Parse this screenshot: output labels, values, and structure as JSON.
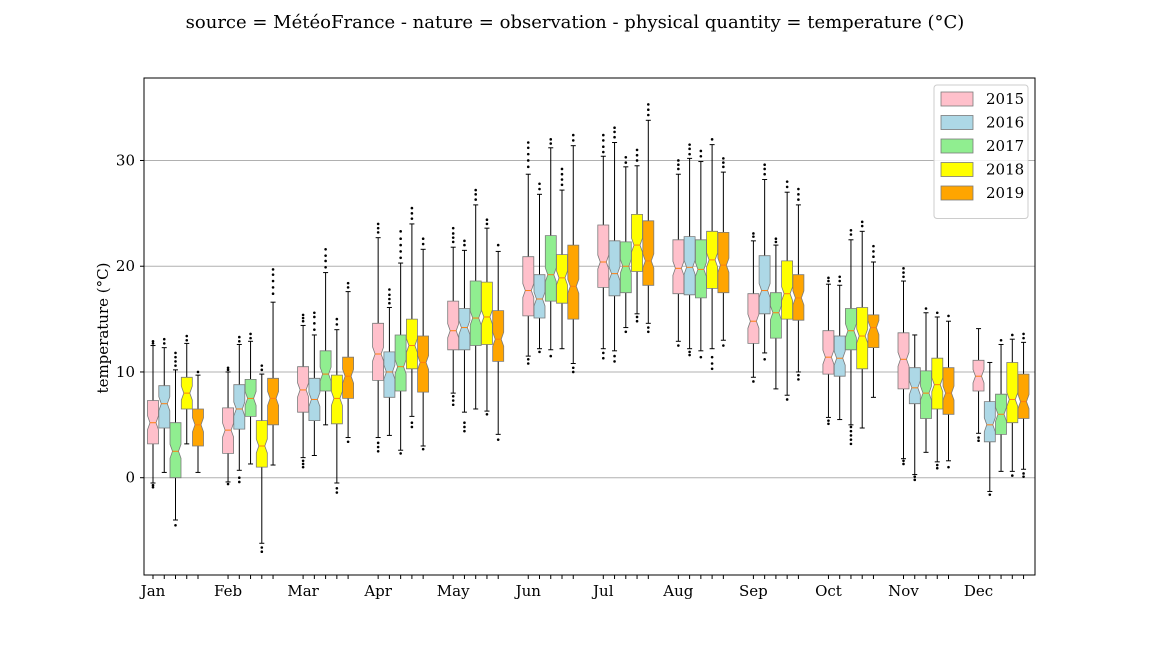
{
  "title": "source = MétéoFrance - nature = observation - physical quantity = temperature (°C)",
  "chart_data": {
    "type": "box",
    "title": "source = MétéoFrance - nature = observation - physical quantity = temperature (°C)",
    "xlabel": "",
    "ylabel": "temperature (°C)",
    "ylim": [
      -9.2,
      37.8
    ],
    "yticks": [
      0,
      10,
      20,
      30
    ],
    "grid": "y",
    "legend_position": "top-right",
    "categories": [
      "Jan",
      "Feb",
      "Mar",
      "Apr",
      "May",
      "Jun",
      "Jul",
      "Aug",
      "Sep",
      "Oct",
      "Nov",
      "Dec"
    ],
    "series": [
      {
        "name": "2015",
        "color": "#ffc0cb",
        "boxes": [
          {
            "whisker_low": -0.5,
            "q1": 3.2,
            "median": 5.2,
            "q3": 7.3,
            "whisker_high": 12.5,
            "outliers": [
              -0.9,
              -0.7,
              12.7,
              12.9
            ]
          },
          {
            "whisker_low": -0.4,
            "q1": 2.3,
            "median": 4.5,
            "q3": 6.6,
            "whisker_high": 10.0,
            "outliers": [
              -0.6,
              10.2,
              10.4
            ]
          },
          {
            "whisker_low": 1.9,
            "q1": 6.2,
            "median": 8.3,
            "q3": 10.5,
            "whisker_high": 14.4,
            "outliers": [
              1.0,
              1.3,
              1.6,
              14.8,
              15.1,
              15.4
            ]
          },
          {
            "whisker_low": 3.8,
            "q1": 9.2,
            "median": 11.7,
            "q3": 14.6,
            "whisker_high": 22.7,
            "outliers": [
              2.5,
              2.9,
              3.3,
              23.2,
              23.6,
              24.0
            ]
          },
          {
            "whisker_low": 8.0,
            "q1": 12.1,
            "median": 13.9,
            "q3": 16.7,
            "whisker_high": 21.8,
            "outliers": [
              6.9,
              7.3,
              7.7,
              22.3,
              22.7,
              23.1,
              23.6
            ]
          },
          {
            "whisker_low": 11.5,
            "q1": 15.3,
            "median": 17.7,
            "q3": 20.9,
            "whisker_high": 28.7,
            "outliers": [
              10.8,
              11.2,
              29.4,
              30.0,
              30.6,
              31.2,
              31.7
            ]
          },
          {
            "whisker_low": 12.2,
            "q1": 18.0,
            "median": 20.4,
            "q3": 23.9,
            "whisker_high": 30.4,
            "outliers": [
              11.3,
              11.8,
              30.8,
              31.3,
              31.9,
              32.4
            ]
          },
          {
            "whisker_low": 12.9,
            "q1": 17.4,
            "median": 19.8,
            "q3": 22.5,
            "whisker_high": 28.7,
            "outliers": [
              12.5,
              29.2,
              29.6,
              30.0
            ]
          },
          {
            "whisker_low": 9.5,
            "q1": 12.7,
            "median": 14.8,
            "q3": 17.4,
            "whisker_high": 22.4,
            "outliers": [
              9.1,
              22.8,
              23.1
            ]
          },
          {
            "whisker_low": 5.7,
            "q1": 9.8,
            "median": 11.4,
            "q3": 13.9,
            "whisker_high": 18.3,
            "outliers": [
              5.1,
              5.4,
              18.6,
              18.9
            ]
          },
          {
            "whisker_low": 1.8,
            "q1": 8.4,
            "median": 11.2,
            "q3": 13.7,
            "whisker_high": 18.6,
            "outliers": [
              1.3,
              1.6,
              19.0,
              19.4,
              19.8
            ]
          },
          {
            "whisker_low": 4.2,
            "q1": 8.2,
            "median": 9.6,
            "q3": 11.1,
            "whisker_high": 14.1,
            "outliers": [
              3.5,
              3.8
            ]
          }
        ]
      },
      {
        "name": "2016",
        "color": "#add8e6",
        "boxes": [
          {
            "whisker_low": 0.5,
            "q1": 4.7,
            "median": 7.0,
            "q3": 8.7,
            "whisker_high": 12.3,
            "outliers": [
              12.7,
              13.1
            ]
          },
          {
            "whisker_low": 0.7,
            "q1": 4.6,
            "median": 6.5,
            "q3": 8.8,
            "whisker_high": 12.6,
            "outliers": [
              -0.4,
              0.0,
              12.9,
              13.3
            ]
          },
          {
            "whisker_low": 2.1,
            "q1": 5.4,
            "median": 7.4,
            "q3": 9.4,
            "whisker_high": 13.5,
            "outliers": [
              14.0,
              14.6,
              15.2,
              15.6
            ]
          },
          {
            "whisker_low": 4.0,
            "q1": 7.6,
            "median": 10.0,
            "q3": 11.9,
            "whisker_high": 16.1,
            "outliers": [
              16.5,
              16.9,
              17.3,
              17.8
            ]
          },
          {
            "whisker_low": 6.2,
            "q1": 12.1,
            "median": 14.2,
            "q3": 16.0,
            "whisker_high": 21.5,
            "outliers": [
              4.4,
              4.8,
              5.2,
              22.0,
              22.4
            ]
          },
          {
            "whisker_low": 12.2,
            "q1": 15.1,
            "median": 16.9,
            "q3": 19.2,
            "whisker_high": 26.8,
            "outliers": [
              11.9,
              27.3,
              27.8
            ]
          },
          {
            "whisker_low": 12.0,
            "q1": 17.2,
            "median": 19.3,
            "q3": 22.4,
            "whisker_high": 31.7,
            "outliers": [
              11.0,
              11.5,
              32.2,
              32.7,
              33.1
            ]
          },
          {
            "whisker_low": 12.2,
            "q1": 17.3,
            "median": 19.9,
            "q3": 22.8,
            "whisker_high": 30.2,
            "outliers": [
              11.6,
              11.9,
              30.6,
              31.1,
              31.5
            ]
          },
          {
            "whisker_low": 11.8,
            "q1": 15.5,
            "median": 17.7,
            "q3": 21.0,
            "whisker_high": 28.2,
            "outliers": [
              11.2,
              28.7,
              29.2,
              29.6
            ]
          },
          {
            "whisker_low": 5.5,
            "q1": 9.6,
            "median": 11.3,
            "q3": 13.4,
            "whisker_high": 18.2,
            "outliers": [
              18.6,
              19.0
            ]
          },
          {
            "whisker_low": 0.3,
            "q1": 7.0,
            "median": 8.5,
            "q3": 10.4,
            "whisker_high": 13.5,
            "outliers": [
              -0.2,
              0.1
            ]
          },
          {
            "whisker_low": -1.3,
            "q1": 3.4,
            "median": 5.0,
            "q3": 7.2,
            "whisker_high": 10.9,
            "outliers": [
              -1.6
            ]
          }
        ]
      },
      {
        "name": "2017",
        "color": "#90ee90",
        "boxes": [
          {
            "whisker_low": -4.0,
            "q1": 0.0,
            "median": 2.5,
            "q3": 5.2,
            "whisker_high": 10.2,
            "outliers": [
              -4.5,
              10.6,
              11.0,
              11.4,
              11.8
            ]
          },
          {
            "whisker_low": 1.3,
            "q1": 5.8,
            "median": 7.5,
            "q3": 9.3,
            "whisker_high": 12.9,
            "outliers": [
              13.2,
              13.6
            ]
          },
          {
            "whisker_low": 5.0,
            "q1": 8.2,
            "median": 9.8,
            "q3": 12.0,
            "whisker_high": 19.4,
            "outliers": [
              19.9,
              20.5,
              21.0,
              21.6
            ]
          },
          {
            "whisker_low": 2.6,
            "q1": 8.2,
            "median": 10.5,
            "q3": 13.5,
            "whisker_high": 20.3,
            "outliers": [
              2.3,
              20.8,
              21.4,
              22.0,
              22.6,
              23.3
            ]
          },
          {
            "whisker_low": 6.5,
            "q1": 12.5,
            "median": 15.1,
            "q3": 18.6,
            "whisker_high": 25.8,
            "outliers": [
              26.3,
              26.8,
              27.2
            ]
          },
          {
            "whisker_low": 12.1,
            "q1": 16.7,
            "median": 19.2,
            "q3": 22.9,
            "whisker_high": 31.2,
            "outliers": [
              11.5,
              31.6,
              32.0
            ]
          },
          {
            "whisker_low": 14.2,
            "q1": 17.5,
            "median": 20.0,
            "q3": 22.3,
            "whisker_high": 29.4,
            "outliers": [
              13.8,
              29.8,
              30.3
            ]
          },
          {
            "whisker_low": 12.0,
            "q1": 17.0,
            "median": 19.7,
            "q3": 22.5,
            "whisker_high": 29.9,
            "outliers": [
              11.4,
              30.4,
              30.9
            ]
          },
          {
            "whisker_low": 8.4,
            "q1": 13.2,
            "median": 15.6,
            "q3": 17.5,
            "whisker_high": 22.0,
            "outliers": [
              22.3,
              22.6
            ]
          },
          {
            "whisker_low": 5.0,
            "q1": 12.1,
            "median": 13.9,
            "q3": 16.0,
            "whisker_high": 22.5,
            "outliers": [
              3.2,
              3.6,
              4.0,
              4.4,
              4.8,
              23.0,
              23.4
            ]
          },
          {
            "whisker_low": 2.4,
            "q1": 5.6,
            "median": 8.0,
            "q3": 10.1,
            "whisker_high": 15.6,
            "outliers": [
              16.0
            ]
          },
          {
            "whisker_low": 0.6,
            "q1": 4.1,
            "median": 6.0,
            "q3": 7.9,
            "whisker_high": 12.6,
            "outliers": [
              13.0
            ]
          }
        ]
      },
      {
        "name": "2018",
        "color": "#ffff00",
        "boxes": [
          {
            "whisker_low": 3.2,
            "q1": 6.5,
            "median": 8.0,
            "q3": 9.5,
            "whisker_high": 12.7,
            "outliers": [
              13.0,
              13.4
            ]
          },
          {
            "whisker_low": -6.2,
            "q1": 1.0,
            "median": 3.0,
            "q3": 5.4,
            "whisker_high": 9.8,
            "outliers": [
              -6.6,
              -7.0,
              10.2,
              10.6
            ]
          },
          {
            "whisker_low": -0.5,
            "q1": 5.1,
            "median": 7.5,
            "q3": 9.7,
            "whisker_high": 14.0,
            "outliers": [
              -1.0,
              -1.4,
              14.5,
              15.0
            ]
          },
          {
            "whisker_low": 5.8,
            "q1": 10.3,
            "median": 12.5,
            "q3": 15.0,
            "whisker_high": 24.0,
            "outliers": [
              4.8,
              5.2,
              24.5,
              25.0,
              25.5
            ]
          },
          {
            "whisker_low": 6.3,
            "q1": 12.6,
            "median": 15.2,
            "q3": 18.5,
            "whisker_high": 23.6,
            "outliers": [
              6.0,
              24.0,
              24.4
            ]
          },
          {
            "whisker_low": 12.2,
            "q1": 16.5,
            "median": 18.9,
            "q3": 21.1,
            "whisker_high": 27.2,
            "outliers": [
              27.7,
              28.2,
              28.7,
              29.2
            ]
          },
          {
            "whisker_low": 15.5,
            "q1": 19.5,
            "median": 22.0,
            "q3": 24.9,
            "whisker_high": 29.5,
            "outliers": [
              14.8,
              15.2,
              30.0,
              30.5,
              31.0
            ]
          },
          {
            "whisker_low": 12.2,
            "q1": 17.9,
            "median": 20.6,
            "q3": 23.3,
            "whisker_high": 31.5,
            "outliers": [
              10.3,
              10.8,
              11.4,
              32.0
            ]
          },
          {
            "whisker_low": 7.8,
            "q1": 15.0,
            "median": 17.4,
            "q3": 20.5,
            "whisker_high": 27.0,
            "outliers": [
              7.4,
              27.5,
              28.0
            ]
          },
          {
            "whisker_low": 4.7,
            "q1": 10.3,
            "median": 13.4,
            "q3": 16.1,
            "whisker_high": 23.3,
            "outliers": [
              23.8,
              24.2
            ]
          },
          {
            "whisker_low": 1.5,
            "q1": 6.5,
            "median": 8.8,
            "q3": 11.3,
            "whisker_high": 15.2,
            "outliers": [
              0.9,
              1.2,
              15.6
            ]
          },
          {
            "whisker_low": 0.6,
            "q1": 5.2,
            "median": 7.4,
            "q3": 10.9,
            "whisker_high": 13.1,
            "outliers": [
              0.2,
              13.5
            ]
          }
        ]
      },
      {
        "name": "2019",
        "color": "#ffa500",
        "boxes": [
          {
            "whisker_low": 0.5,
            "q1": 3.0,
            "median": 5.0,
            "q3": 6.5,
            "whisker_high": 9.7,
            "outliers": [
              10.0
            ]
          },
          {
            "whisker_low": 1.2,
            "q1": 5.0,
            "median": 7.5,
            "q3": 9.4,
            "whisker_high": 16.6,
            "outliers": [
              17.4,
              18.0,
              18.6,
              19.2,
              19.7
            ]
          },
          {
            "whisker_low": 3.8,
            "q1": 7.5,
            "median": 9.6,
            "q3": 11.4,
            "whisker_high": 17.6,
            "outliers": [
              3.4,
              18.0,
              18.4
            ]
          },
          {
            "whisker_low": 3.0,
            "q1": 8.1,
            "median": 10.9,
            "q3": 13.4,
            "whisker_high": 21.6,
            "outliers": [
              2.7,
              22.1,
              22.6
            ]
          },
          {
            "whisker_low": 4.1,
            "q1": 11.0,
            "median": 13.1,
            "q3": 15.8,
            "whisker_high": 21.4,
            "outliers": [
              3.6,
              22.0
            ]
          },
          {
            "whisker_low": 10.8,
            "q1": 15.0,
            "median": 18.1,
            "q3": 22.0,
            "whisker_high": 31.4,
            "outliers": [
              10.0,
              10.4,
              31.9,
              32.4
            ]
          },
          {
            "whisker_low": 14.6,
            "q1": 18.2,
            "median": 20.5,
            "q3": 24.3,
            "whisker_high": 33.8,
            "outliers": [
              13.8,
              14.2,
              34.3,
              34.8,
              35.3
            ]
          },
          {
            "whisker_low": 13.0,
            "q1": 17.5,
            "median": 20.1,
            "q3": 23.2,
            "whisker_high": 28.9,
            "outliers": [
              12.5,
              29.4,
              29.8,
              30.2
            ]
          },
          {
            "whisker_low": 10.0,
            "q1": 14.9,
            "median": 17.0,
            "q3": 19.2,
            "whisker_high": 25.8,
            "outliers": [
              9.3,
              9.7,
              26.3,
              26.8,
              27.3
            ]
          },
          {
            "whisker_low": 7.6,
            "q1": 12.3,
            "median": 14.2,
            "q3": 15.4,
            "whisker_high": 20.4,
            "outliers": [
              20.9,
              21.4,
              21.9
            ]
          },
          {
            "whisker_low": 1.6,
            "q1": 6.0,
            "median": 8.0,
            "q3": 10.4,
            "whisker_high": 14.8,
            "outliers": [
              1.0,
              15.3
            ]
          },
          {
            "whisker_low": 0.8,
            "q1": 5.6,
            "median": 7.2,
            "q3": 9.8,
            "whisker_high": 12.8,
            "outliers": [
              0.1,
              0.4,
              13.2,
              13.6
            ]
          }
        ]
      }
    ]
  }
}
